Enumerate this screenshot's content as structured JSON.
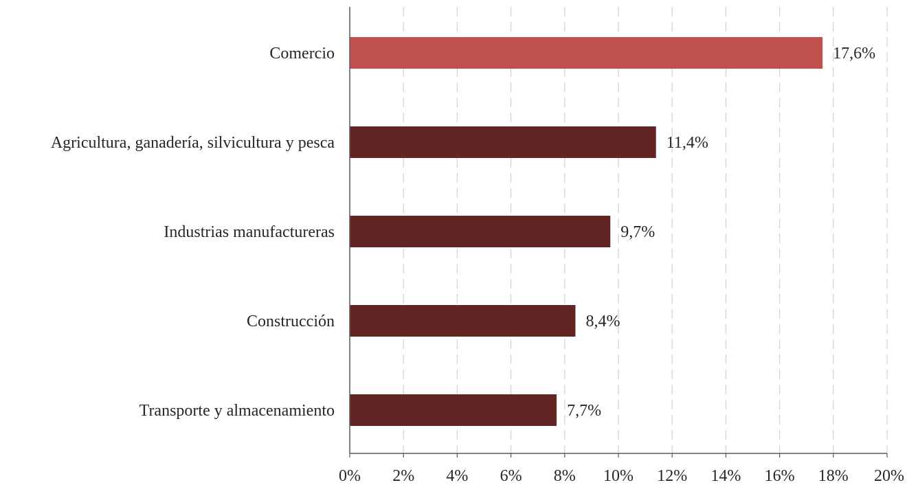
{
  "chart_data": {
    "type": "bar",
    "orientation": "horizontal",
    "categories": [
      "Comercio",
      "Agricultura, ganadería, silvicultura y pesca",
      "Industrias manufactureras",
      "Construcción",
      "Transporte y almacenamiento"
    ],
    "values": [
      17.6,
      11.4,
      9.7,
      8.4,
      7.7
    ],
    "data_labels": [
      "17,6%",
      "11,4%",
      "9,7%",
      "8,4%",
      "7,7%"
    ],
    "bar_colors": [
      "#C0504D",
      "#632523",
      "#632523",
      "#632523",
      "#632523"
    ],
    "xlim": [
      0,
      20
    ],
    "x_ticks": [
      0,
      2,
      4,
      6,
      8,
      10,
      12,
      14,
      16,
      18,
      20
    ],
    "x_tick_labels": [
      "0%",
      "2%",
      "4%",
      "6%",
      "8%",
      "10%",
      "12%",
      "14%",
      "16%",
      "18%",
      "20%"
    ],
    "grid": "vertical-dashed",
    "grid_color": "#D0D0D0",
    "axis_color": "#595959",
    "title": "",
    "xlabel": "",
    "ylabel": "",
    "legend": "none"
  }
}
